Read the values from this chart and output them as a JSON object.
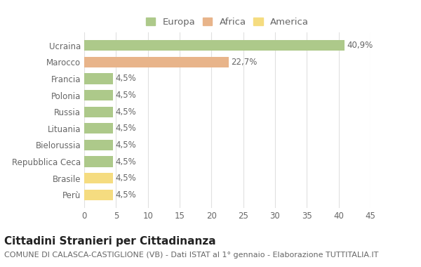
{
  "categories": [
    "Perù",
    "Brasile",
    "Repubblica Ceca",
    "Bielorussia",
    "Lituania",
    "Russia",
    "Polonia",
    "Francia",
    "Marocco",
    "Ucraina"
  ],
  "values": [
    4.5,
    4.5,
    4.5,
    4.5,
    4.5,
    4.5,
    4.5,
    4.5,
    22.7,
    40.9
  ],
  "labels": [
    "4,5%",
    "4,5%",
    "4,5%",
    "4,5%",
    "4,5%",
    "4,5%",
    "4,5%",
    "4,5%",
    "22,7%",
    "40,9%"
  ],
  "colors": [
    "#f5dc80",
    "#f5dc80",
    "#adc98a",
    "#adc98a",
    "#adc98a",
    "#adc98a",
    "#adc98a",
    "#adc98a",
    "#e8b48a",
    "#adc98a"
  ],
  "legend_labels": [
    "Europa",
    "Africa",
    "America"
  ],
  "legend_colors": [
    "#adc98a",
    "#e8b48a",
    "#f5dc80"
  ],
  "title": "Cittadini Stranieri per Cittadinanza",
  "subtitle": "COMUNE DI CALASCA-CASTIGLIONE (VB) - Dati ISTAT al 1° gennaio - Elaborazione TUTTITALIA.IT",
  "xlim": [
    0,
    45
  ],
  "xticks": [
    0,
    5,
    10,
    15,
    20,
    25,
    30,
    35,
    40,
    45
  ],
  "background_color": "#ffffff",
  "grid_color": "#e0e0e0",
  "bar_height": 0.65,
  "title_fontsize": 11,
  "subtitle_fontsize": 8,
  "label_fontsize": 8.5,
  "tick_fontsize": 8.5,
  "legend_fontsize": 9.5
}
